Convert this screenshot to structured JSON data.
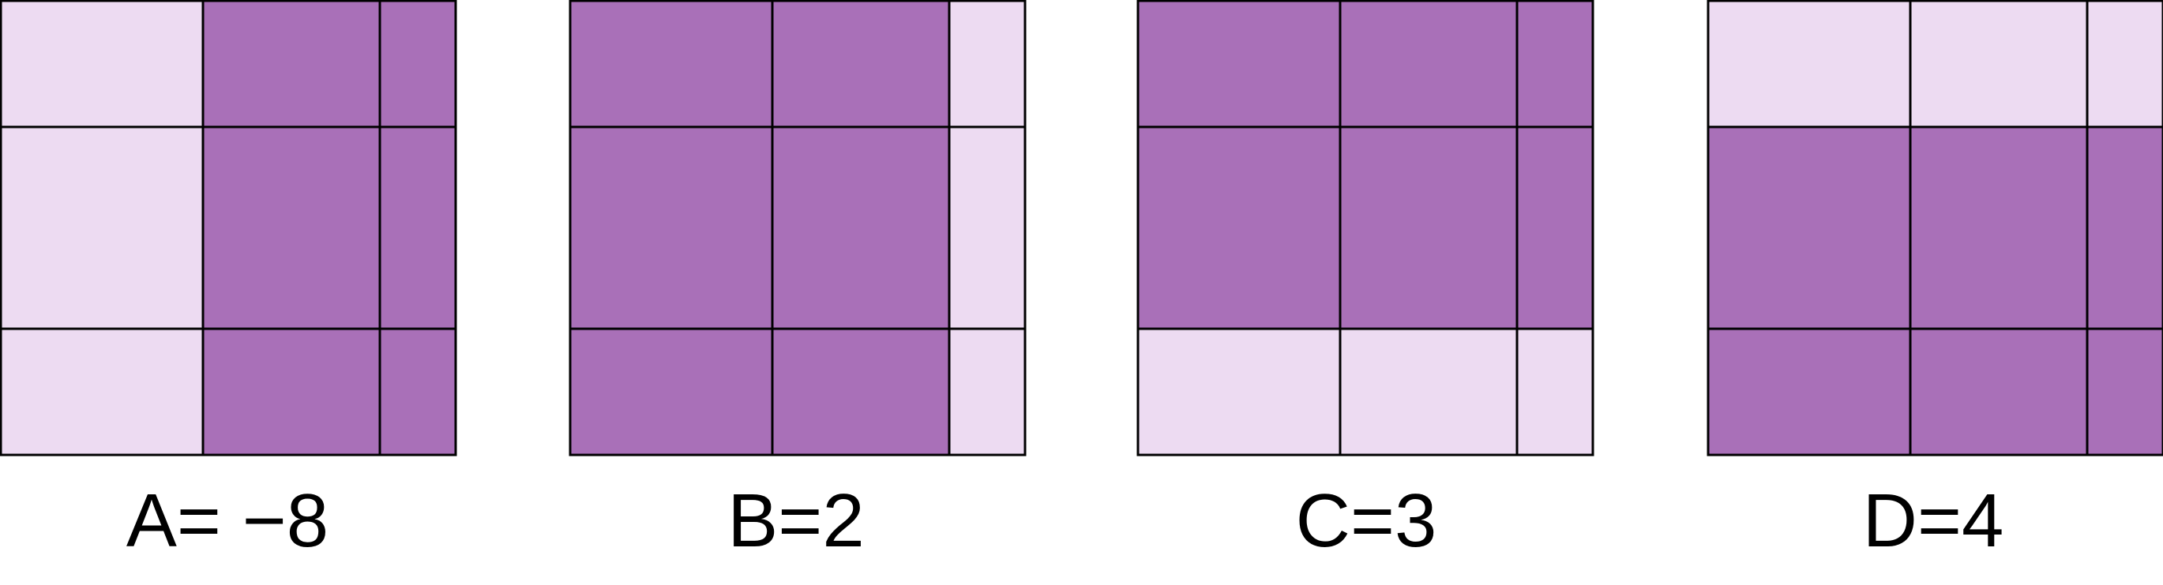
{
  "colors": {
    "dark": "#a970b8",
    "light": "#eddbf2",
    "line": "#000000"
  },
  "panels": [
    {
      "label": "A= −8",
      "rows": [
        [
          "light",
          "dark",
          "dark"
        ],
        [
          "light",
          "dark",
          "dark"
        ],
        [
          "light",
          "dark",
          "dark"
        ]
      ]
    },
    {
      "label": "B=2",
      "rows": [
        [
          "dark",
          "dark",
          "light"
        ],
        [
          "dark",
          "dark",
          "light"
        ],
        [
          "dark",
          "dark",
          "light"
        ]
      ]
    },
    {
      "label": "C=3",
      "rows": [
        [
          "dark",
          "dark",
          "dark"
        ],
        [
          "dark",
          "dark",
          "dark"
        ],
        [
          "light",
          "light",
          "light"
        ]
      ]
    },
    {
      "label": "D=4",
      "rows": [
        [
          "light",
          "light",
          "light"
        ],
        [
          "dark",
          "dark",
          "dark"
        ],
        [
          "dark",
          "dark",
          "dark"
        ]
      ]
    }
  ]
}
